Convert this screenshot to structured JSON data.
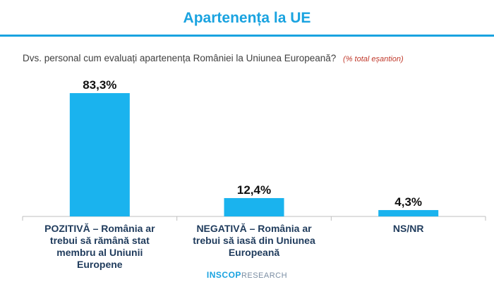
{
  "colors": {
    "title": "#1aa3e0",
    "rule": "#1aa3e0",
    "bar": "#1ab3ee",
    "note": "#c0392b",
    "axis": "#bfbfbf",
    "brand": "#1aa3e0"
  },
  "header": {
    "title": "Apartenența la UE"
  },
  "question": {
    "text": "Dvs. personal cum evaluați apartenența României la Uniunea Europeană?",
    "note": "(% total eșantion)"
  },
  "chart_data": {
    "type": "bar",
    "categories": [
      "POZITIVĂ – România ar trebui să rămână stat membru al Uniunii Europene",
      "NEGATIVĂ – România ar trebui să iasă din Uniunea Europeană",
      "NS/NR"
    ],
    "values": [
      83.3,
      12.4,
      4.3
    ],
    "value_labels": [
      "83,3%",
      "12,4%",
      "4,3%"
    ],
    "ylim": [
      0,
      100
    ],
    "grid": false
  },
  "footer": {
    "brand_main": "INSCOP",
    "brand_sub": "RESEARCH"
  }
}
